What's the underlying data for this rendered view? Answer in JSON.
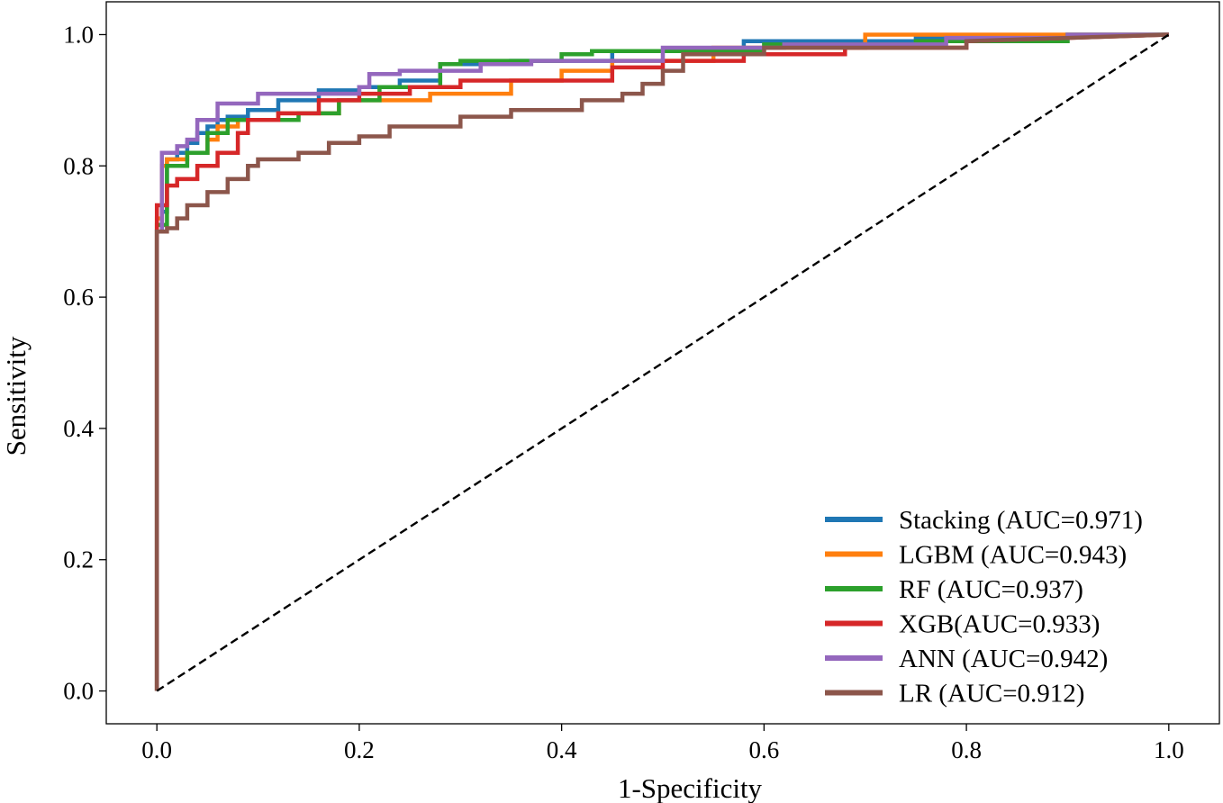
{
  "chart_data": {
    "type": "line",
    "title": "",
    "xlabel": "1-Specificity",
    "ylabel": "Sensitivity",
    "xlim": [
      -0.05,
      1.05
    ],
    "ylim": [
      -0.05,
      1.05
    ],
    "xticks": [
      "0.0",
      "0.2",
      "0.4",
      "0.6",
      "0.8",
      "1.0"
    ],
    "yticks": [
      "0.0",
      "0.2",
      "0.4",
      "0.6",
      "0.8",
      "1.0"
    ],
    "grid": false,
    "legend_position": "lower-right",
    "diagonal": {
      "x": [
        0,
        1
      ],
      "y": [
        0,
        1
      ],
      "style": "dashed",
      "color": "#000000"
    },
    "series": [
      {
        "name": "Stacking (AUC=0.971)",
        "color": "#1f77b4",
        "x": [
          0,
          0,
          0.005,
          0.005,
          0.01,
          0.01,
          0.02,
          0.02,
          0.03,
          0.03,
          0.04,
          0.04,
          0.05,
          0.05,
          0.06,
          0.06,
          0.07,
          0.07,
          0.09,
          0.09,
          0.12,
          0.12,
          0.16,
          0.16,
          0.2,
          0.2,
          0.24,
          0.24,
          0.28,
          0.28,
          0.35,
          0.35,
          0.45,
          0.45,
          0.58,
          0.58,
          0.75,
          0.75,
          1.0
        ],
        "y": [
          0,
          0.7,
          0.7,
          0.73,
          0.73,
          0.81,
          0.81,
          0.82,
          0.82,
          0.835,
          0.835,
          0.85,
          0.85,
          0.86,
          0.86,
          0.87,
          0.87,
          0.875,
          0.875,
          0.885,
          0.885,
          0.9,
          0.9,
          0.915,
          0.915,
          0.92,
          0.92,
          0.93,
          0.93,
          0.955,
          0.955,
          0.96,
          0.96,
          0.975,
          0.975,
          0.99,
          0.99,
          0.995,
          1.0
        ]
      },
      {
        "name": "LGBM (AUC=0.943)",
        "color": "#ff7f0e",
        "x": [
          0,
          0,
          0.005,
          0.005,
          0.01,
          0.01,
          0.03,
          0.03,
          0.05,
          0.05,
          0.06,
          0.06,
          0.08,
          0.08,
          0.12,
          0.12,
          0.18,
          0.18,
          0.27,
          0.27,
          0.35,
          0.35,
          0.4,
          0.4,
          0.45,
          0.45,
          0.55,
          0.55,
          0.7,
          0.7,
          0.85,
          0.85,
          1.0
        ],
        "y": [
          0,
          0.72,
          0.72,
          0.8,
          0.8,
          0.81,
          0.81,
          0.82,
          0.82,
          0.84,
          0.84,
          0.86,
          0.86,
          0.87,
          0.87,
          0.88,
          0.88,
          0.9,
          0.9,
          0.91,
          0.91,
          0.93,
          0.93,
          0.945,
          0.945,
          0.96,
          0.96,
          0.98,
          0.98,
          1.0,
          1.0,
          1.0,
          1.0
        ]
      },
      {
        "name": "RF (AUC=0.937)",
        "color": "#2ca02c",
        "x": [
          0,
          0,
          0.01,
          0.01,
          0.03,
          0.03,
          0.05,
          0.05,
          0.07,
          0.07,
          0.1,
          0.1,
          0.14,
          0.14,
          0.18,
          0.18,
          0.22,
          0.22,
          0.28,
          0.28,
          0.3,
          0.3,
          0.4,
          0.4,
          0.43,
          0.43,
          0.6,
          0.6,
          0.75,
          0.75,
          0.9,
          0.9,
          1.0
        ],
        "y": [
          0,
          0.71,
          0.71,
          0.8,
          0.8,
          0.82,
          0.82,
          0.85,
          0.85,
          0.87,
          0.87,
          0.87,
          0.87,
          0.88,
          0.88,
          0.9,
          0.9,
          0.92,
          0.92,
          0.955,
          0.955,
          0.96,
          0.96,
          0.97,
          0.97,
          0.975,
          0.975,
          0.985,
          0.985,
          0.99,
          0.99,
          1.0,
          1.0
        ]
      },
      {
        "name": "XGB(AUC=0.933)",
        "color": "#d62728",
        "x": [
          0,
          0,
          0.005,
          0.005,
          0.01,
          0.01,
          0.02,
          0.02,
          0.04,
          0.04,
          0.06,
          0.06,
          0.08,
          0.08,
          0.09,
          0.09,
          0.12,
          0.12,
          0.16,
          0.16,
          0.2,
          0.2,
          0.25,
          0.25,
          0.3,
          0.3,
          0.45,
          0.45,
          0.5,
          0.5,
          0.58,
          0.58,
          0.68,
          0.68,
          0.8,
          0.8,
          1.0
        ],
        "y": [
          0,
          0.74,
          0.74,
          0.74,
          0.74,
          0.77,
          0.77,
          0.78,
          0.78,
          0.8,
          0.8,
          0.82,
          0.82,
          0.85,
          0.85,
          0.87,
          0.87,
          0.88,
          0.88,
          0.9,
          0.9,
          0.91,
          0.91,
          0.92,
          0.92,
          0.93,
          0.93,
          0.95,
          0.95,
          0.96,
          0.96,
          0.97,
          0.97,
          0.98,
          0.98,
          0.99,
          1.0
        ]
      },
      {
        "name": "ANN (AUC=0.942)",
        "color": "#9467bd",
        "x": [
          0,
          0,
          0.005,
          0.005,
          0.02,
          0.02,
          0.03,
          0.03,
          0.04,
          0.04,
          0.06,
          0.06,
          0.1,
          0.1,
          0.14,
          0.14,
          0.2,
          0.2,
          0.21,
          0.21,
          0.24,
          0.24,
          0.32,
          0.32,
          0.37,
          0.37,
          0.5,
          0.5,
          0.62,
          0.62,
          0.78,
          0.78,
          0.9,
          0.9,
          1.0
        ],
        "y": [
          0,
          0.7,
          0.7,
          0.82,
          0.82,
          0.83,
          0.83,
          0.84,
          0.84,
          0.87,
          0.87,
          0.895,
          0.895,
          0.91,
          0.91,
          0.91,
          0.91,
          0.92,
          0.92,
          0.94,
          0.94,
          0.945,
          0.945,
          0.955,
          0.955,
          0.96,
          0.96,
          0.98,
          0.98,
          0.985,
          0.985,
          0.995,
          0.995,
          1.0,
          1.0
        ]
      },
      {
        "name": "LR (AUC=0.912)",
        "color": "#8c564b",
        "x": [
          0,
          0,
          0.01,
          0.01,
          0.02,
          0.02,
          0.03,
          0.03,
          0.05,
          0.05,
          0.07,
          0.07,
          0.09,
          0.09,
          0.1,
          0.1,
          0.14,
          0.14,
          0.17,
          0.17,
          0.2,
          0.2,
          0.23,
          0.23,
          0.3,
          0.3,
          0.35,
          0.35,
          0.42,
          0.42,
          0.46,
          0.46,
          0.48,
          0.48,
          0.5,
          0.5,
          0.52,
          0.52,
          0.6,
          0.6,
          0.8,
          0.8,
          1.0
        ],
        "y": [
          0,
          0.7,
          0.7,
          0.705,
          0.705,
          0.72,
          0.72,
          0.74,
          0.74,
          0.76,
          0.76,
          0.78,
          0.78,
          0.8,
          0.8,
          0.81,
          0.81,
          0.82,
          0.82,
          0.835,
          0.835,
          0.845,
          0.845,
          0.86,
          0.86,
          0.875,
          0.875,
          0.885,
          0.885,
          0.9,
          0.9,
          0.91,
          0.91,
          0.925,
          0.925,
          0.945,
          0.945,
          0.97,
          0.97,
          0.98,
          0.98,
          0.99,
          1.0
        ]
      }
    ]
  }
}
